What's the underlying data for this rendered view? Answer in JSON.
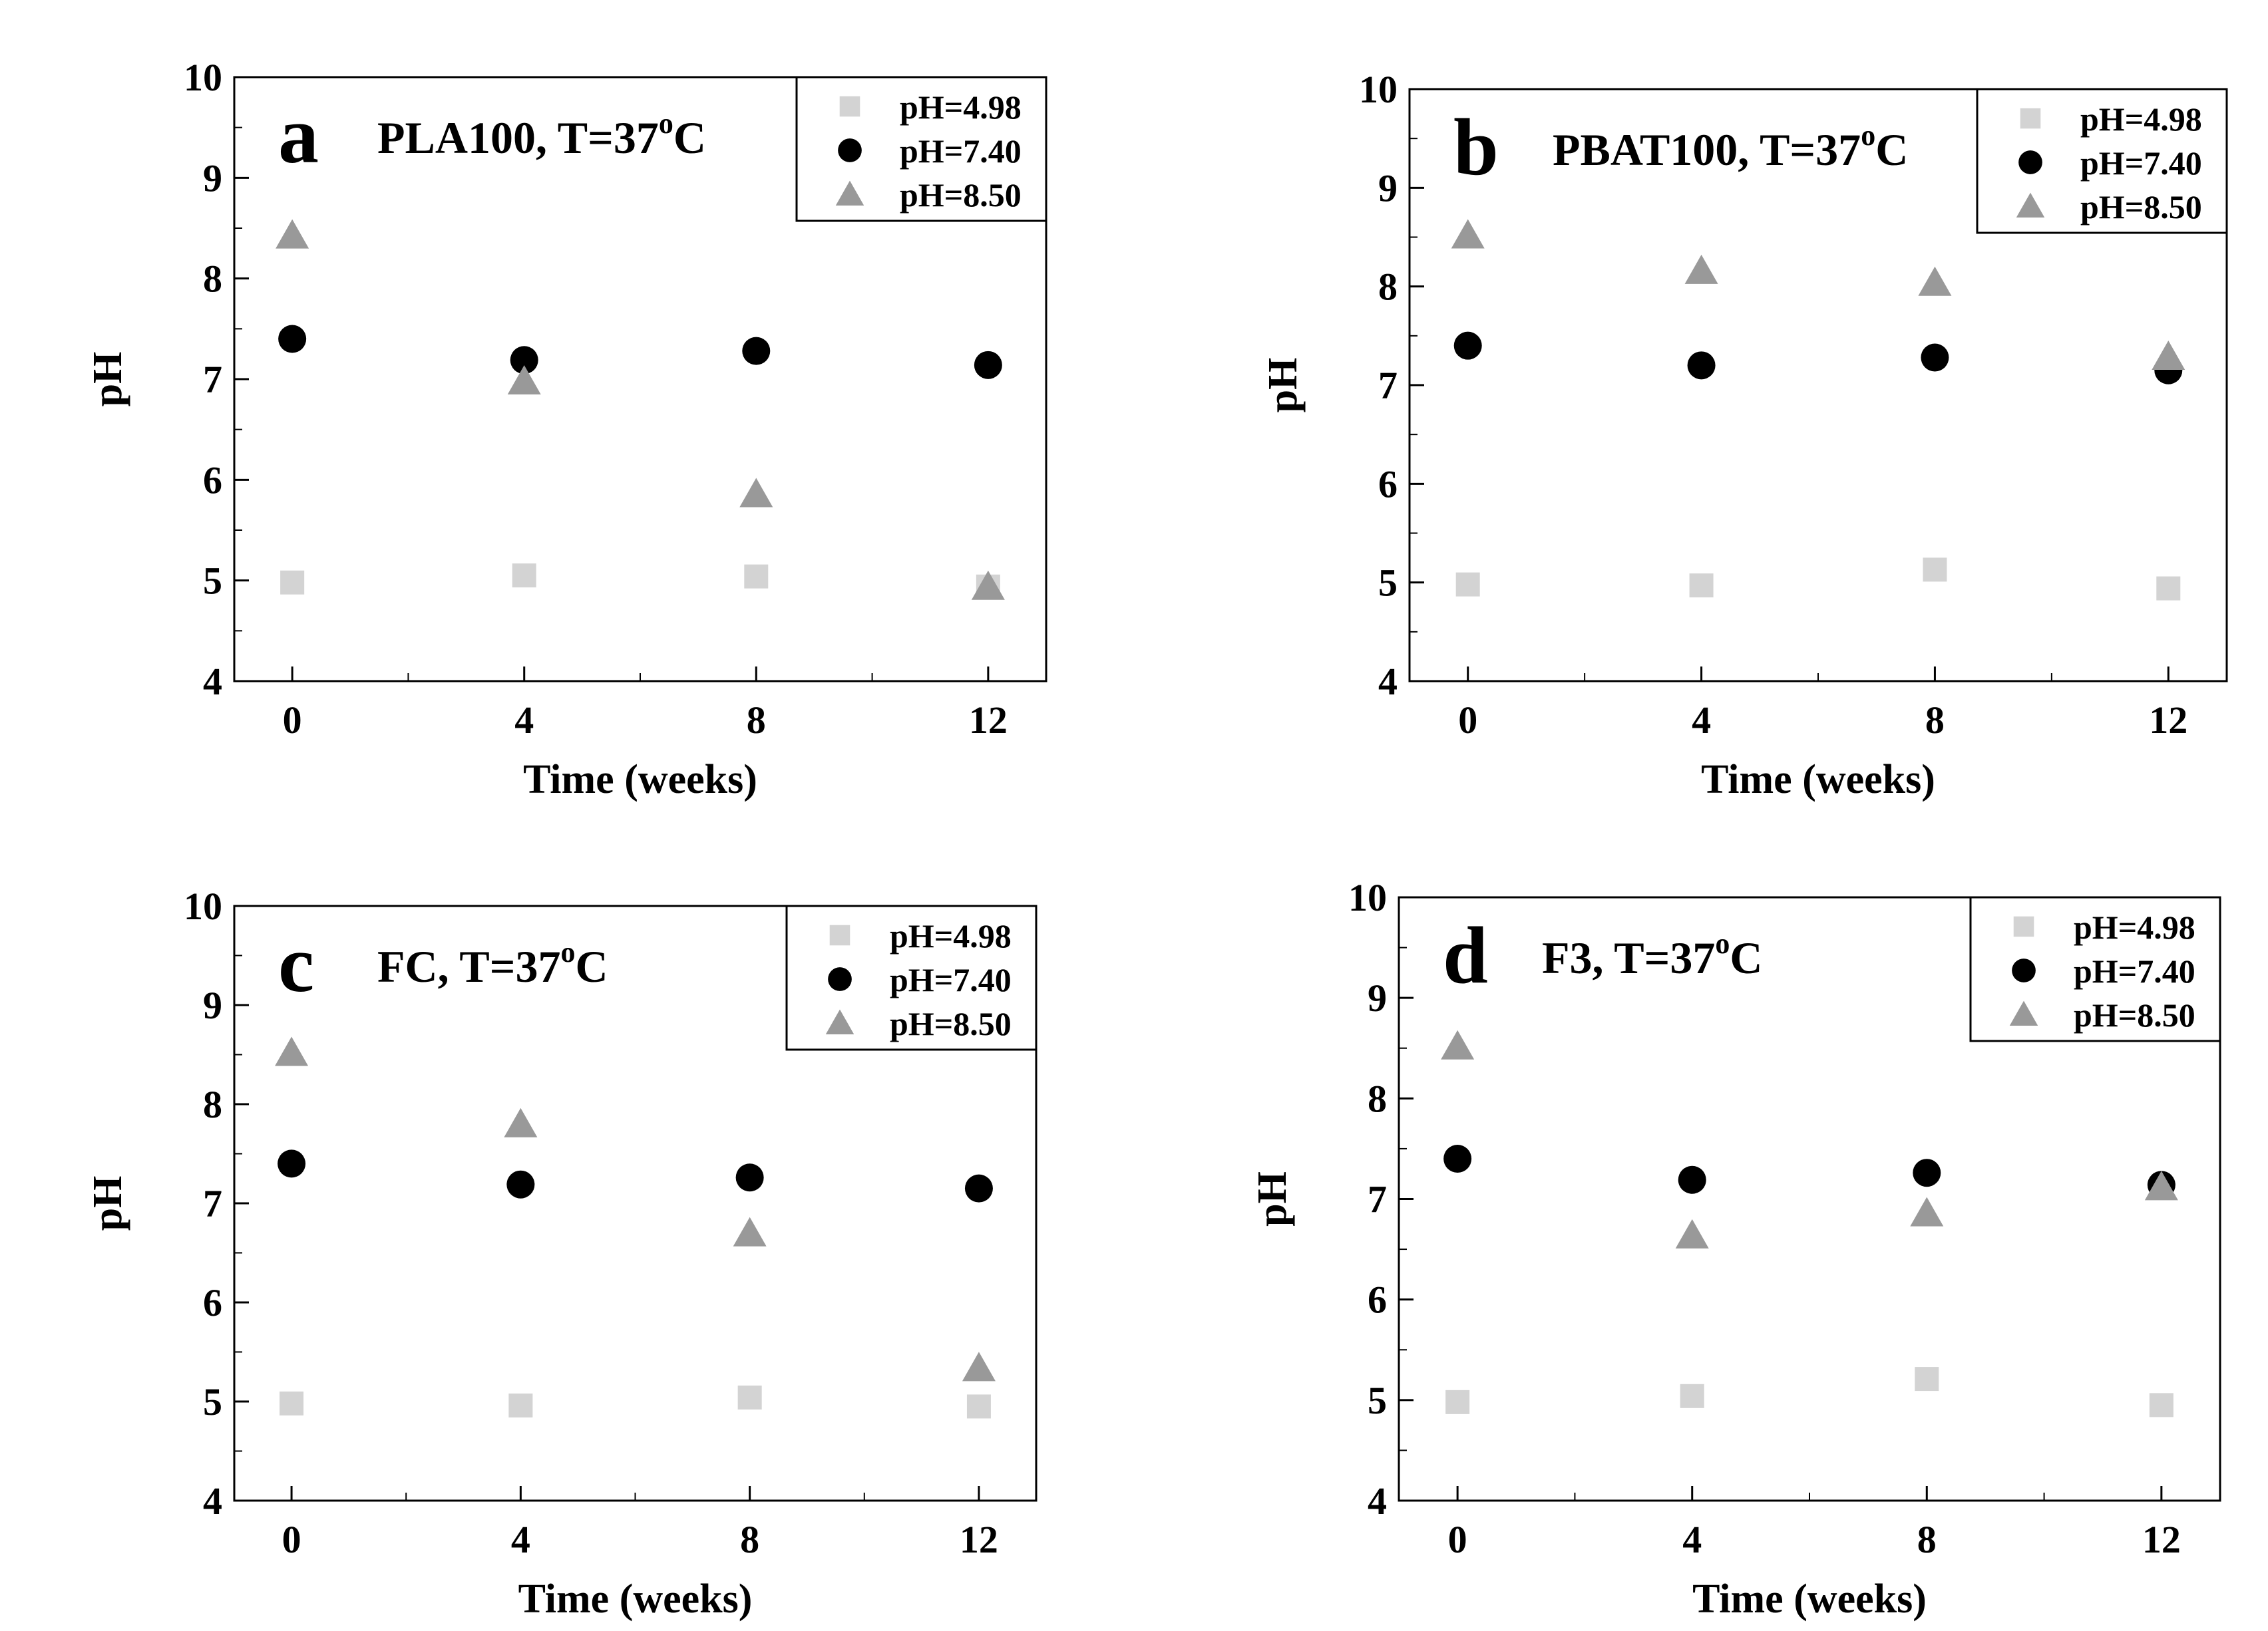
{
  "figure": {
    "legend_labels": [
      "pH=4.98",
      "pH=7.40",
      "pH=8.50"
    ],
    "legend_markers": [
      "square",
      "circle",
      "triangle"
    ],
    "series_colors": [
      "#d3d3d3",
      "#000000",
      "#999999"
    ]
  },
  "chart_data": [
    {
      "type": "scatter",
      "panel": "a",
      "title": "PLA100, T=37°C",
      "title_main": "PLA100, T=37",
      "title_sup": "o",
      "title_end": "C",
      "xlabel": "Time (weeks)",
      "ylabel": "pH",
      "xlim": [
        -1,
        13
      ],
      "ylim": [
        4,
        10
      ],
      "xticks": [
        0,
        4,
        8,
        12
      ],
      "yticks": [
        4,
        5,
        6,
        7,
        8,
        9,
        10
      ],
      "x": [
        0,
        4,
        8,
        12
      ],
      "series": [
        {
          "name": "pH=4.98",
          "marker": "square",
          "values": [
            4.98,
            5.05,
            5.04,
            4.94
          ]
        },
        {
          "name": "pH=7.40",
          "marker": "circle",
          "values": [
            7.4,
            7.19,
            7.28,
            7.14
          ]
        },
        {
          "name": "pH=8.50",
          "marker": "triangle",
          "values": [
            8.43,
            6.98,
            5.86,
            4.94
          ]
        }
      ],
      "legend": "top-right"
    },
    {
      "type": "scatter",
      "panel": "b",
      "title": "PBAT100, T=37°C",
      "title_main": "PBAT100, T=37",
      "title_sup": "o",
      "title_end": "C",
      "xlabel": "Time (weeks)",
      "ylabel": "pH",
      "xlim": [
        -1,
        13
      ],
      "ylim": [
        4,
        10
      ],
      "xticks": [
        0,
        4,
        8,
        12
      ],
      "yticks": [
        4,
        5,
        6,
        7,
        8,
        9,
        10
      ],
      "x": [
        0,
        4,
        8,
        12
      ],
      "series": [
        {
          "name": "pH=4.98",
          "marker": "square",
          "values": [
            4.98,
            4.97,
            5.13,
            4.94
          ]
        },
        {
          "name": "pH=7.40",
          "marker": "circle",
          "values": [
            7.4,
            7.2,
            7.28,
            7.15
          ]
        },
        {
          "name": "pH=8.50",
          "marker": "triangle",
          "values": [
            8.52,
            8.16,
            8.04,
            7.29
          ]
        }
      ],
      "legend": "top-right"
    },
    {
      "type": "scatter",
      "panel": "c",
      "title": "FC, T=37°C",
      "title_main": "FC, T=37",
      "title_sup": "o",
      "title_end": "C",
      "xlabel": "Time (weeks)",
      "ylabel": "pH",
      "xlim": [
        -1,
        13
      ],
      "ylim": [
        4,
        10
      ],
      "xticks": [
        0,
        4,
        8,
        12
      ],
      "yticks": [
        4,
        5,
        6,
        7,
        8,
        9,
        10
      ],
      "x": [
        0,
        4,
        8,
        12
      ],
      "series": [
        {
          "name": "pH=4.98",
          "marker": "square",
          "values": [
            4.98,
            4.96,
            5.04,
            4.95
          ]
        },
        {
          "name": "pH=7.40",
          "marker": "circle",
          "values": [
            7.4,
            7.19,
            7.26,
            7.15
          ]
        },
        {
          "name": "pH=8.50",
          "marker": "triangle",
          "values": [
            8.52,
            7.8,
            6.7,
            5.34
          ]
        }
      ],
      "legend": "top-right"
    },
    {
      "type": "scatter",
      "panel": "d",
      "title": "F3, T=37°C",
      "title_main": "F3, T=37",
      "title_sup": "o",
      "title_end": "C",
      "xlabel": "Time (weeks)",
      "ylabel": "pH",
      "xlim": [
        -1,
        13
      ],
      "ylim": [
        4,
        10
      ],
      "xticks": [
        0,
        4,
        8,
        12
      ],
      "yticks": [
        4,
        5,
        6,
        7,
        8,
        9,
        10
      ],
      "x": [
        0,
        4,
        8,
        12
      ],
      "series": [
        {
          "name": "pH=4.98",
          "marker": "square",
          "values": [
            4.98,
            5.04,
            5.21,
            4.95
          ]
        },
        {
          "name": "pH=7.40",
          "marker": "circle",
          "values": [
            7.4,
            7.19,
            7.26,
            7.14
          ]
        },
        {
          "name": "pH=8.50",
          "marker": "triangle",
          "values": [
            8.52,
            6.64,
            6.86,
            7.12
          ]
        }
      ],
      "legend": "top-right"
    }
  ]
}
